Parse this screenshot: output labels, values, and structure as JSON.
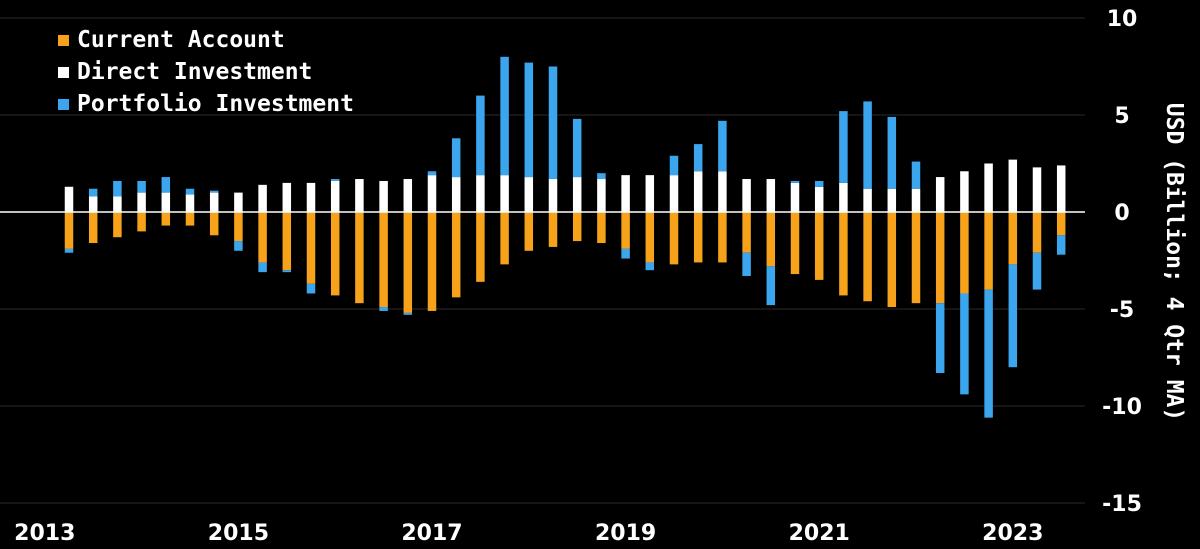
{
  "chart_data": {
    "type": "bar",
    "stacked": true,
    "title": "",
    "xlabel": "",
    "ylabel": "USD (Billion; 4 Qtr MA)",
    "ylim": [
      -15,
      10
    ],
    "yticks": [
      10,
      5,
      0,
      -5,
      -10,
      -15
    ],
    "ytick_labels": [
      "10",
      "5",
      "0",
      "-5",
      "-10",
      "-15"
    ],
    "xticks": [
      "2013",
      "2015",
      "2017",
      "2019",
      "2021",
      "2023"
    ],
    "grid": true,
    "legend_position": "top-left",
    "x": [
      "2013Q2",
      "2013Q3",
      "2013Q4",
      "2014Q1",
      "2014Q2",
      "2014Q3",
      "2014Q4",
      "2015Q1",
      "2015Q2",
      "2015Q3",
      "2015Q4",
      "2016Q1",
      "2016Q2",
      "2016Q3",
      "2016Q4",
      "2017Q1",
      "2017Q2",
      "2017Q3",
      "2017Q4",
      "2018Q1",
      "2018Q2",
      "2018Q3",
      "2018Q4",
      "2019Q1",
      "2019Q2",
      "2019Q3",
      "2019Q4",
      "2020Q1",
      "2020Q2",
      "2020Q3",
      "2020Q4",
      "2021Q1",
      "2021Q2",
      "2021Q3",
      "2021Q4",
      "2022Q1",
      "2022Q2",
      "2022Q3",
      "2022Q4",
      "2023Q1",
      "2023Q2",
      "2023Q3"
    ],
    "series": [
      {
        "name": "Current Account",
        "color": "#f7a21b",
        "values": [
          -1.9,
          -1.6,
          -1.3,
          -1.0,
          -0.7,
          -0.7,
          -1.2,
          -1.5,
          -2.6,
          -3.0,
          -3.7,
          -4.3,
          -4.7,
          -4.9,
          -5.2,
          -5.1,
          -4.4,
          -3.6,
          -2.7,
          -2.0,
          -1.8,
          -1.5,
          -1.6,
          -1.9,
          -2.6,
          -2.7,
          -2.6,
          -2.6,
          -2.1,
          -2.8,
          -3.2,
          -3.5,
          -4.3,
          -4.6,
          -4.9,
          -4.7,
          -4.7,
          -4.2,
          -4.0,
          -2.7,
          -2.1,
          -1.2
        ]
      },
      {
        "name": "Direct Investment",
        "color": "#ffffff",
        "values": [
          1.3,
          0.8,
          0.8,
          1.0,
          1.0,
          0.9,
          1.0,
          1.0,
          1.4,
          1.5,
          1.5,
          1.6,
          1.7,
          1.6,
          1.7,
          1.9,
          1.8,
          1.9,
          1.9,
          1.8,
          1.7,
          1.8,
          1.7,
          1.9,
          1.9,
          1.9,
          2.1,
          2.1,
          1.7,
          1.7,
          1.5,
          1.3,
          1.5,
          1.2,
          1.2,
          1.2,
          1.8,
          2.1,
          2.5,
          2.7,
          2.3,
          2.4
        ]
      },
      {
        "name": "Portfolio Investment",
        "color": "#3ba6ee",
        "values": [
          -0.2,
          0.4,
          0.8,
          0.6,
          0.8,
          0.3,
          0.1,
          -0.5,
          -0.5,
          -0.1,
          -0.5,
          0.1,
          0.0,
          -0.2,
          -0.1,
          0.2,
          2.0,
          4.1,
          6.1,
          5.9,
          5.8,
          3.0,
          0.3,
          -0.5,
          -0.4,
          1.0,
          1.4,
          2.6,
          -1.2,
          -2.0,
          0.1,
          0.3,
          3.7,
          4.5,
          3.7,
          1.4,
          -3.6,
          -5.2,
          -6.6,
          -5.3,
          -1.9,
          -1.0
        ]
      }
    ]
  }
}
